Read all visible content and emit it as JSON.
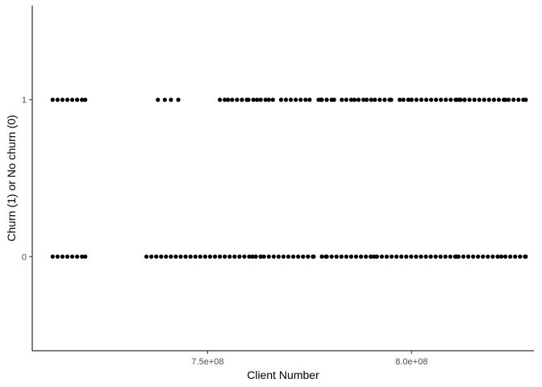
{
  "chart_data": {
    "type": "scatter",
    "title": "",
    "xlabel": "Client Number",
    "ylabel": "Churn (1) or No churn (0)",
    "xlim": [
      707000000,
      830000000
    ],
    "ylim": [
      -0.6,
      1.6
    ],
    "x_ticks": [
      {
        "value": 750000000,
        "label": "7.5e+08"
      },
      {
        "value": 800000000,
        "label": "8.0e+08"
      }
    ],
    "y_ticks": [
      {
        "value": 0,
        "label": "0"
      },
      {
        "value": 1,
        "label": "1"
      }
    ],
    "grid": false,
    "point_color": "#000000",
    "series": [
      {
        "y": 1,
        "x_ranges": [
          [
            712000000,
            720000000
          ],
          [
            753000000,
            755000000
          ],
          [
            756000000,
            760000000
          ],
          [
            763000000,
            765000000
          ],
          [
            768000000,
            775000000
          ],
          [
            778000000,
            781000000
          ],
          [
            784000000,
            786000000
          ],
          [
            787000000,
            789000000
          ],
          [
            791000000,
            795000000
          ],
          [
            798000000,
            800000000
          ],
          [
            800000000,
            811000000
          ],
          [
            812000000,
            813000000
          ],
          [
            813000000,
            823000000
          ],
          [
            825000000,
            828000000
          ]
        ],
        "x_points": [
          737800000,
          739500000,
          741000000,
          742800000,
          761200000,
          762100000,
          766000000,
          777200000,
          777800000,
          782900000,
          790100000,
          797100000,
          811600000,
          823800000
        ]
      },
      {
        "y": 0,
        "x_ranges": [
          [
            712000000,
            720000000
          ],
          [
            735000000,
            761000000
          ],
          [
            761800000,
            763000000
          ],
          [
            763800000,
            776000000
          ],
          [
            778000000,
            790000000
          ],
          [
            791500000,
            811000000
          ],
          [
            811500000,
            822000000
          ],
          [
            823000000,
            828000000
          ]
        ],
        "x_points": [
          779000000,
          790800000
        ]
      }
    ]
  }
}
